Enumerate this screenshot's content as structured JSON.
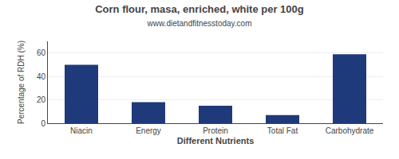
{
  "chart_data": {
    "type": "bar",
    "title": "Corn flour, masa, enriched, white per 100g",
    "subtitle": "www.dietandfitnesstoday.com",
    "categories": [
      "Niacin",
      "Energy",
      "Protein",
      "Total Fat",
      "Carbohydrate"
    ],
    "values": [
      50,
      18,
      15,
      7,
      59
    ],
    "color": "#1f3a7a",
    "xlabel": "Different Nutrients",
    "ylabel": "Percentage of RDH (%)",
    "ylim": [
      0,
      70
    ],
    "yticks": [
      0,
      20,
      40,
      60
    ],
    "grid": true
  }
}
